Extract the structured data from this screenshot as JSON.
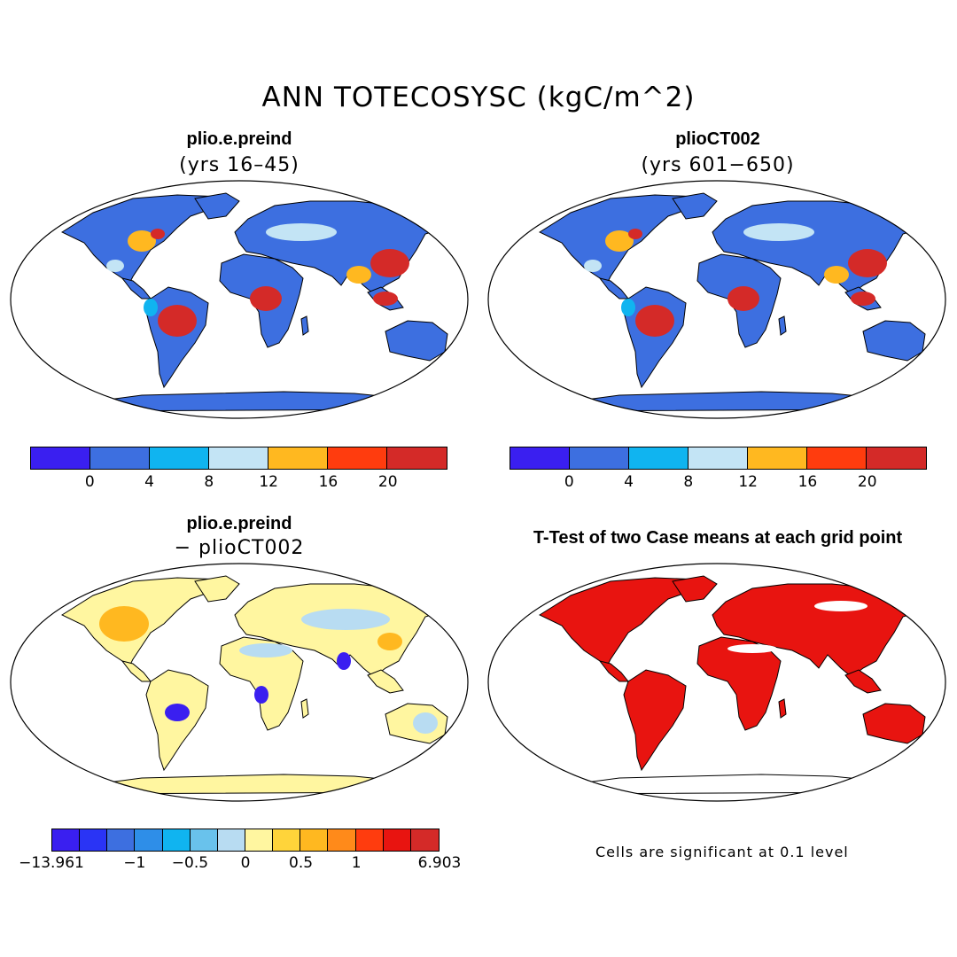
{
  "title": "ANN TOTECOSYSC (kgC/m^2)",
  "panels": [
    {
      "title": "plio.e.preind",
      "subtitle": "(yrs 16–45)"
    },
    {
      "title": "plioCT002",
      "subtitle": "(yrs 601−650)"
    },
    {
      "title": "plio.e.preind",
      "subtitle": "− plioCT002"
    },
    {
      "title": "T-Test of two Case means at each grid point",
      "subtitle": ""
    }
  ],
  "colorbar_abs": {
    "colors": [
      "#3a1ff0",
      "#3d6fe0",
      "#10b4f0",
      "#c3e4f5",
      "#ffb820",
      "#ff3c0e",
      "#d42a28"
    ],
    "labels": [
      "0",
      "4",
      "8",
      "12",
      "16",
      "20"
    ]
  },
  "colorbar_diff": {
    "colors": [
      "#3a1ff0",
      "#2a34f5",
      "#3d6fe0",
      "#2e8ee8",
      "#10b4f0",
      "#69c2ec",
      "#b8dcf2",
      "#fff6a0",
      "#ffd43a",
      "#ffb820",
      "#ff8a1a",
      "#ff3c0e",
      "#e81410",
      "#d42a28"
    ],
    "labels": [
      "−13.961",
      "−1",
      "−0.5",
      "0",
      "0.5",
      "1",
      "6.903"
    ]
  },
  "footnote": "Cells are significant at 0.1 level",
  "map_colors": {
    "abs_ocean": "#ffffff",
    "abs_base": "#3d6fe0",
    "abs_light": "#c3e4f5",
    "abs_cyan": "#10b4f0",
    "abs_orange": "#ffb820",
    "abs_red": "#d42a28",
    "diff_base": "#fff6a0",
    "diff_light": "#b8dcf2",
    "diff_orange": "#ffb820",
    "diff_blue": "#3a1ff0",
    "ttest": "#e81410"
  }
}
